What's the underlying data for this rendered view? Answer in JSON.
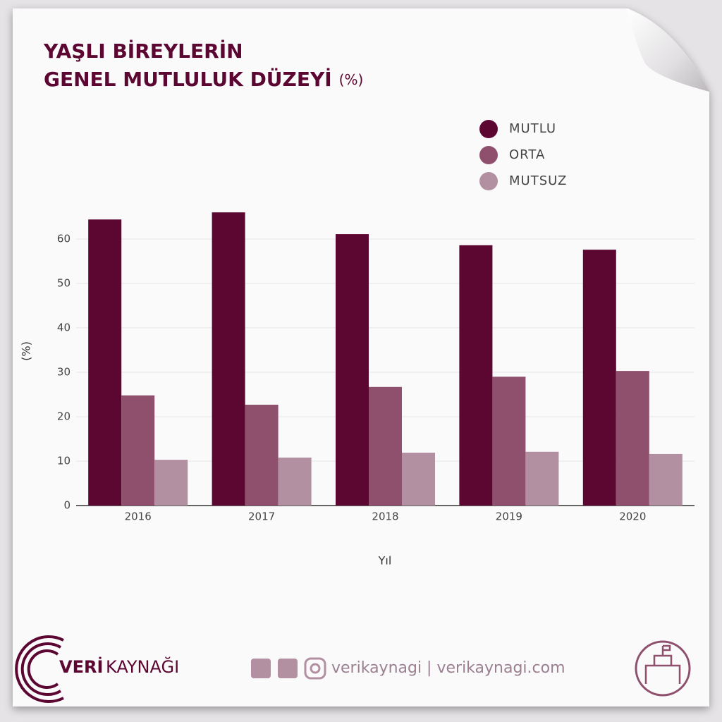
{
  "chart_data": {
    "type": "bar",
    "title": [
      "YAŞLI BİREYLERİN",
      "GENEL MUTLULUK DÜZEYİ"
    ],
    "title_unit": "(%)",
    "categories": [
      "2016",
      "2017",
      "2018",
      "2019",
      "2020"
    ],
    "series": [
      {
        "name": "MUTLU",
        "color": "#5c0632",
        "values": [
          64.4,
          66.0,
          61.1,
          58.6,
          57.6
        ]
      },
      {
        "name": "ORTA",
        "color": "#8f506d",
        "values": [
          24.8,
          22.7,
          26.7,
          29.0,
          30.3
        ]
      },
      {
        "name": "MUTSUZ",
        "color": "#b290a1",
        "values": [
          10.3,
          10.8,
          11.9,
          12.1,
          11.6
        ]
      }
    ],
    "ylim": [
      0,
      70
    ],
    "yticks": [
      0,
      10,
      20,
      30,
      40,
      50,
      60
    ],
    "grid": true,
    "y_label": "(%)",
    "x_label": "Yıl",
    "legend": "top-right"
  },
  "footer": {
    "brand_bold": "VERİ",
    "brand": "KAYNAĞI",
    "social": "verikaynagi | verikaynagi.com"
  }
}
